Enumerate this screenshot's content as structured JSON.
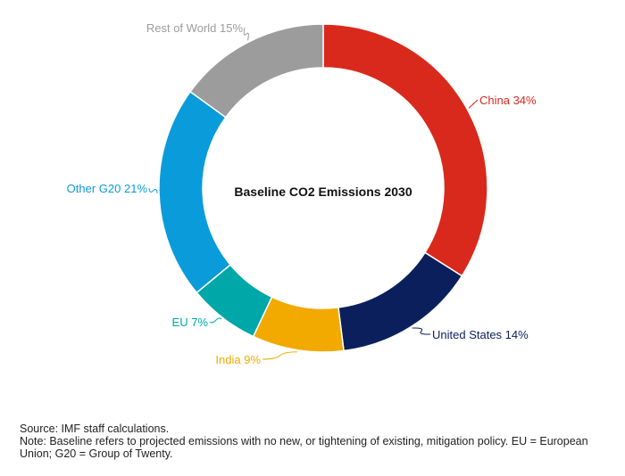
{
  "chart_data": {
    "type": "pie",
    "title": "Baseline CO2 Emissions 2030",
    "unit": "%",
    "categories": [
      "China",
      "United States",
      "India",
      "EU",
      "Other G20",
      "Rest of World"
    ],
    "values": [
      34,
      14,
      9,
      7,
      21,
      15
    ],
    "labels": [
      "China 34%",
      "United States 14%",
      "India 9%",
      "EU 7%",
      "Other G20 21%",
      "Rest of World 15%"
    ],
    "colors": [
      "#D9291C",
      "#0B1F5C",
      "#F2A900",
      "#00A7A8",
      "#0A9BDB",
      "#9C9C9C"
    ],
    "donut": true
  },
  "notes": {
    "source": "Source: IMF staff calculations.",
    "note": "Note: Baseline refers to projected emissions with no new, or tightening of existing, mitigation policy. EU = European Union; G20 = Group of Twenty."
  }
}
